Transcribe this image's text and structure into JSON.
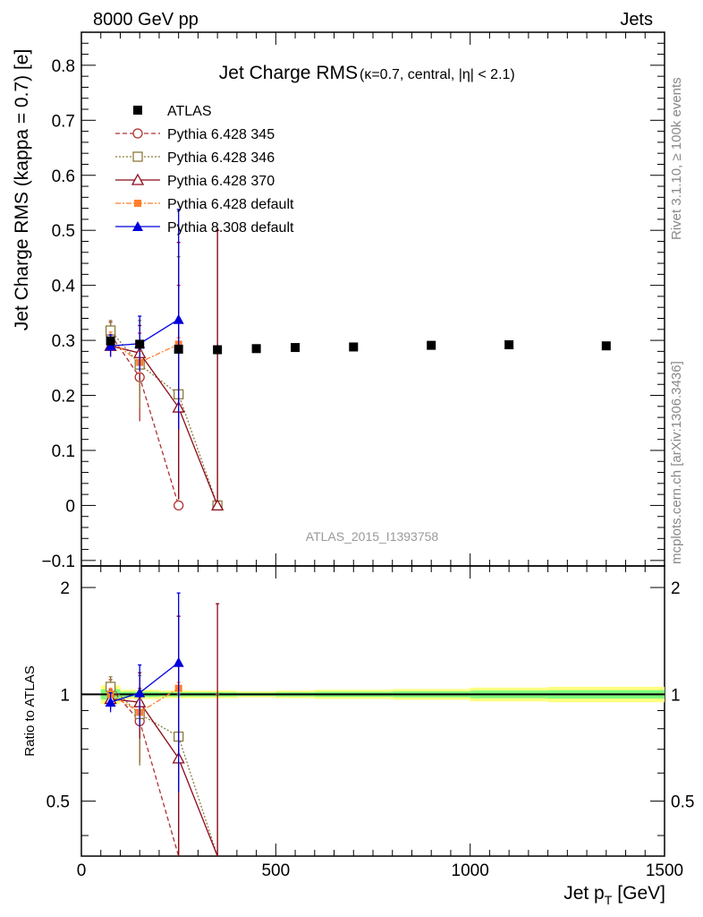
{
  "header": {
    "energy_label": "8000 GeV pp",
    "process_label": "Jets",
    "rivet_label": "Rivet 3.1.10, ≥ 100k events",
    "mcplots_label": "mcplots.cern.ch [arXiv:1306.3436]",
    "analysis_id": "ATLAS_2015_I1393758"
  },
  "colors": {
    "atlas": "#000000",
    "p345": "#b03030",
    "p346": "#8b7a3a",
    "p370": "#8b0a1a",
    "p6def": "#ff7f2a",
    "p8def": "#0000dd",
    "band_inner": "#7cfc7c",
    "band_outer": "#ffff80"
  },
  "chart_data": [
    {
      "type": "scatter",
      "title": "Jet Charge RMS",
      "subtitle": "(κ=0.7, central, |η| < 2.1)",
      "ylabel": "Jet Charge RMS (kappa = 0.7) [e]",
      "xlim": [
        0,
        1500
      ],
      "ylim": [
        -0.11,
        0.86
      ],
      "yticks": [
        "−0.1",
        "0",
        "0.1",
        "0.2",
        "0.3",
        "0.4",
        "0.5",
        "0.6",
        "0.7",
        "0.8"
      ],
      "legend_position": "top-left",
      "series": [
        {
          "name": "ATLAS",
          "x": [
            75,
            150,
            250,
            350,
            450,
            550,
            700,
            900,
            1100,
            1350
          ],
          "values": [
            0.299,
            0.293,
            0.284,
            0.283,
            0.285,
            0.287,
            0.288,
            0.291,
            0.292,
            0.29
          ]
        },
        {
          "name": "Pythia 6.428 345",
          "x": [
            75,
            150,
            250
          ],
          "values": [
            0.311,
            0.233,
            0.0
          ],
          "errors": [
            0.022,
            0.08,
            0.4
          ]
        },
        {
          "name": "Pythia 6.428 346",
          "x": [
            75,
            150,
            250,
            350
          ],
          "values": [
            0.318,
            0.256,
            0.202,
            0.0
          ],
          "errors": [
            0.018,
            0.08,
            0.25,
            0.5
          ]
        },
        {
          "name": "Pythia 6.428 370",
          "x": [
            75,
            150,
            250,
            350
          ],
          "values": [
            0.29,
            0.277,
            0.178,
            0.0
          ],
          "errors": [
            0.02,
            0.05,
            0.3,
            0.5
          ]
        },
        {
          "name": "Pythia 6.428 default",
          "x": [
            75,
            150,
            250
          ],
          "values": [
            0.3,
            0.26,
            0.293
          ],
          "errors": [
            0.015,
            0.02,
            0.012
          ]
        },
        {
          "name": "Pythia 8.308 default",
          "x": [
            75,
            150,
            250
          ],
          "values": [
            0.29,
            0.294,
            0.338
          ],
          "errors": [
            0.02,
            0.05,
            0.2
          ]
        }
      ]
    },
    {
      "type": "scatter",
      "ylabel": "Ratio to ATLAS",
      "xlabel": "Jet p",
      "xlabel_sub": "T",
      "xlabel_unit": "[GeV]",
      "xlim": [
        0,
        1500
      ],
      "xticks": [
        "0",
        "500",
        "1000",
        "1500"
      ],
      "ylim": [
        0.35,
        2.3
      ],
      "yscale": "log",
      "yticks": [
        "0.5",
        "1",
        "2"
      ],
      "reference": 1.0,
      "series": [
        {
          "name": "Pythia 6.428 345",
          "x": [
            75,
            150,
            250
          ],
          "values": [
            1.04,
            0.84,
            0.0
          ],
          "errors": [
            0.06,
            0.2,
            1.0
          ]
        },
        {
          "name": "Pythia 6.428 346",
          "x": [
            75,
            150,
            250,
            350
          ],
          "values": [
            1.05,
            0.88,
            0.76,
            0.0
          ],
          "errors": [
            0.07,
            0.25,
            0.9,
            1.0
          ]
        },
        {
          "name": "Pythia 6.428 370",
          "x": [
            75,
            150,
            250,
            350
          ],
          "values": [
            0.97,
            0.95,
            0.66,
            0.0
          ],
          "errors": [
            0.06,
            0.2,
            1.0,
            1.8
          ]
        },
        {
          "name": "Pythia 6.428 default",
          "x": [
            75,
            150,
            250
          ],
          "values": [
            1.0,
            0.89,
            1.04
          ],
          "errors": [
            0.04,
            0.08,
            0.04
          ]
        },
        {
          "name": "Pythia 8.308 default",
          "x": [
            75,
            150,
            250
          ],
          "values": [
            0.95,
            1.01,
            1.23
          ],
          "errors": [
            0.06,
            0.2,
            0.7
          ]
        }
      ]
    }
  ]
}
